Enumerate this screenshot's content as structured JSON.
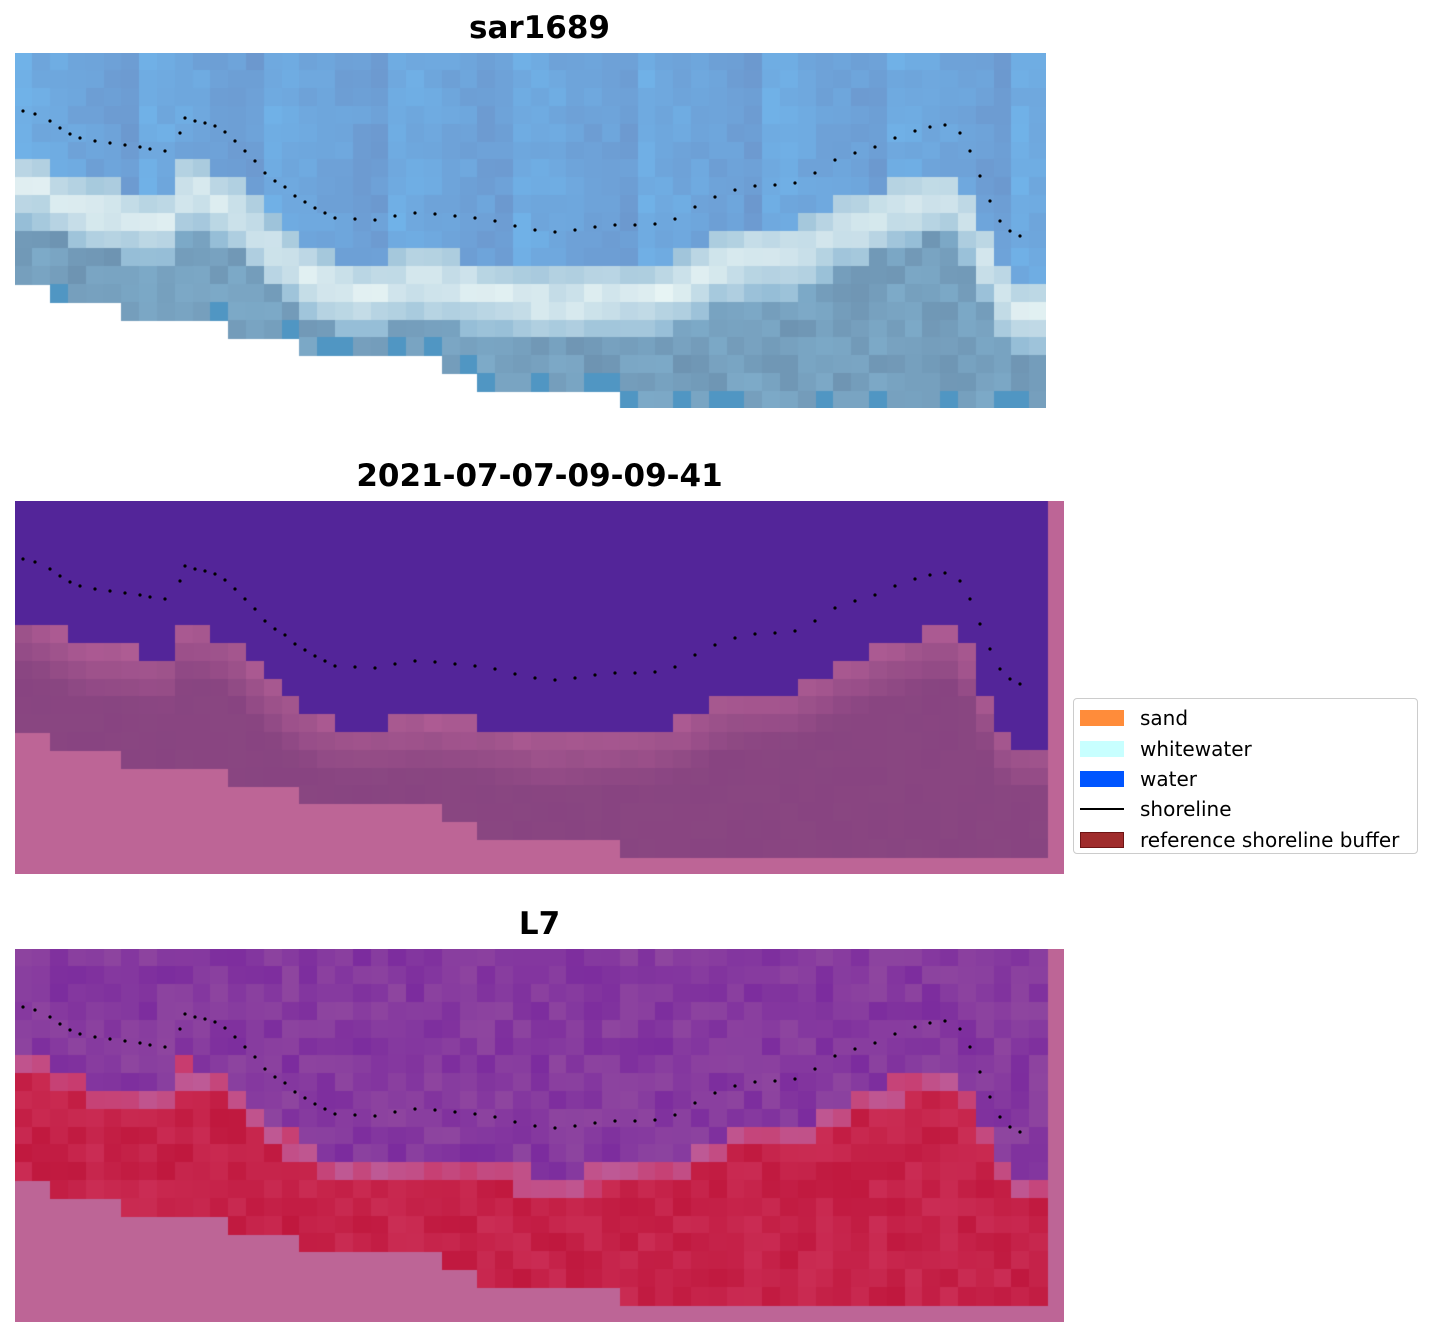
{
  "panels": [
    {
      "title": "sar1689",
      "kind": "rgb-composite"
    },
    {
      "title": "2021-07-07-09-09-41",
      "kind": "classified"
    },
    {
      "title": "L7",
      "kind": "index"
    }
  ],
  "legend": {
    "position": "right",
    "items": [
      {
        "label": "sand",
        "color": "#ff8c3a",
        "type": "patch"
      },
      {
        "label": "whitewater",
        "color": "#c8ffff",
        "type": "patch"
      },
      {
        "label": "water",
        "color": "#0055ff",
        "type": "patch"
      },
      {
        "label": "shoreline",
        "color": "#000000",
        "type": "line"
      },
      {
        "label": "reference shoreline buffer",
        "color": "#a02c2c",
        "type": "patch"
      }
    ]
  },
  "colors": {
    "nodata": "#bd6596",
    "class_water": "#532599",
    "class_land": "#884481",
    "rgb_water": "#6ea0cc",
    "rgb_whitewater": "#e8f4f4",
    "index_water": "#7c2c9e",
    "index_land": "#c0183e",
    "shoreline": "#000000"
  }
}
